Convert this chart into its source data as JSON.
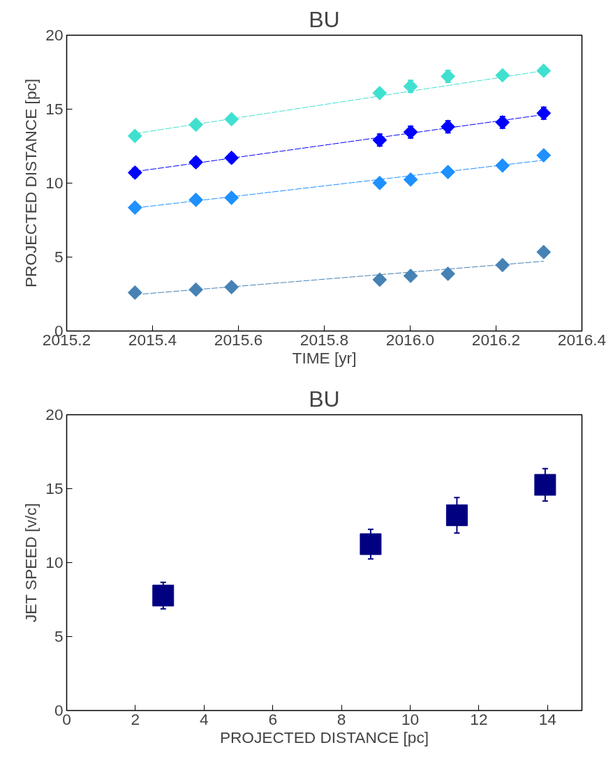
{
  "chart_data": [
    {
      "type": "scatter",
      "title": "BU",
      "xlabel": "TIME [yr]",
      "ylabel": "PROJECTED DISTANCE [pc]",
      "xlim": [
        2015.2,
        2016.4
      ],
      "xticks": [
        2015.2,
        2015.4,
        2015.6,
        2015.8,
        {
          "value": 2016.0,
          "label": "2016.0"
        },
        2016.2,
        2016.4
      ],
      "ylim": [
        0,
        20
      ],
      "yticks": [
        0,
        5,
        10,
        15,
        20
      ],
      "grid": false,
      "marker": "diamond",
      "x": [
        2015.359,
        2015.501,
        2015.584,
        2015.929,
        2016.001,
        2016.088,
        2016.215,
        2016.311
      ],
      "series": [
        {
          "color": "#40e0d0",
          "values": [
            13.19,
            13.95,
            14.32,
            16.09,
            16.54,
            17.22,
            17.29,
            17.6
          ],
          "errors": [
            null,
            null,
            null,
            null,
            0.4,
            0.4,
            null,
            null
          ]
        },
        {
          "color": "#0000ff",
          "values": [
            10.71,
            11.41,
            11.71,
            12.91,
            13.45,
            13.81,
            14.11,
            14.73
          ],
          "errors": [
            0.3,
            0.3,
            0.3,
            0.4,
            0.4,
            0.4,
            0.4,
            0.4
          ]
        },
        {
          "color": "#1e90ff",
          "values": [
            8.35,
            8.87,
            9.01,
            10.01,
            10.24,
            10.75,
            11.19,
            11.88
          ]
        },
        {
          "color": "#4682b4",
          "values": [
            2.6,
            2.8,
            2.97,
            3.47,
            3.73,
            3.87,
            4.46,
            5.34
          ]
        },
        {
          "type": "line",
          "line_style": "dashed",
          "marker": "none",
          "color": "#40e0d0",
          "values": [
            13.35,
            13.98,
            14.35,
            15.89,
            16.22,
            16.6,
            17.17,
            17.6
          ]
        },
        {
          "type": "line",
          "line_style": "dashed",
          "marker": "none",
          "color": "#0000ff",
          "values": [
            10.78,
            11.35,
            11.69,
            13.09,
            13.38,
            13.73,
            14.24,
            14.63
          ]
        },
        {
          "type": "line",
          "line_style": "dashed",
          "marker": "none",
          "color": "#1e90ff",
          "values": [
            8.32,
            8.8,
            9.08,
            10.25,
            10.5,
            10.79,
            11.22,
            11.55
          ]
        },
        {
          "type": "line",
          "line_style": "dashed",
          "marker": "none",
          "color": "#4682b4",
          "values": [
            2.46,
            2.8,
            2.99,
            3.81,
            3.98,
            4.19,
            4.49,
            4.72
          ]
        }
      ]
    },
    {
      "type": "scatter",
      "title": "BU",
      "xlabel": "PROJECTED DISTANCE [pc]",
      "ylabel": "JET SPEED [v/c]",
      "xlim": [
        0,
        15
      ],
      "xticks": [
        0,
        2,
        4,
        6,
        8,
        10,
        12,
        14
      ],
      "ylim": [
        0,
        20
      ],
      "yticks": [
        0,
        5,
        10,
        15,
        20
      ],
      "grid": false,
      "marker": "square",
      "x": [
        2.81,
        8.85,
        11.36,
        13.93
      ],
      "series": [
        {
          "color": "#000080",
          "values": [
            7.77,
            11.25,
            13.2,
            15.26
          ],
          "errors": [
            0.9,
            1.0,
            1.2,
            1.1
          ]
        }
      ]
    }
  ]
}
